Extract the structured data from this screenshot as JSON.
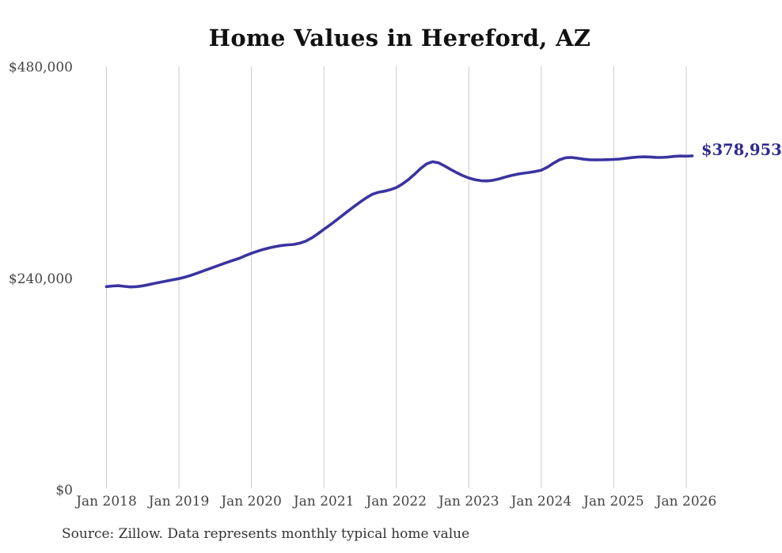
{
  "page": {
    "background_color": "#ffffff"
  },
  "chart_data": {
    "type": "line",
    "title": "Home Values in Hereford, AZ",
    "xlabel": "",
    "ylabel": "",
    "x_tick_labels": [
      "Jan 2018",
      "Jan 2019",
      "Jan 2020",
      "Jan 2021",
      "Jan 2022",
      "Jan 2023",
      "Jan 2024",
      "Jan 2025",
      "Jan 2026"
    ],
    "y_ticks": [
      {
        "label": "$480,000",
        "value": 480000
      },
      {
        "label": "$240,000",
        "value": 240000
      },
      {
        "label": "$0",
        "value": 0
      }
    ],
    "ylim": [
      0,
      480000
    ],
    "grid": "vertical-only",
    "legend": "none",
    "colors": {
      "line": "#3A34A0",
      "end_label": "#2E2A8E",
      "gridline": "#c9c9c9",
      "tick_text": "#444444",
      "title_text": "#111111"
    },
    "end_label": {
      "text": "$378,953",
      "value": 378953
    },
    "series": [
      {
        "name": "Monthly typical home value",
        "start_month": "2018-01",
        "frequency": "monthly",
        "values": [
          230500,
          231200,
          231600,
          230800,
          230200,
          230500,
          231400,
          232800,
          234300,
          235600,
          237000,
          238300,
          239600,
          241300,
          243400,
          245800,
          248200,
          250700,
          253200,
          255700,
          258100,
          260400,
          262700,
          265600,
          268300,
          270700,
          272800,
          274600,
          276100,
          277200,
          277900,
          278400,
          279800,
          282200,
          285800,
          290500,
          295600,
          300400,
          305600,
          311000,
          316300,
          321500,
          326500,
          331200,
          335200,
          337600,
          338800,
          340500,
          343000,
          347000,
          352000,
          358000,
          364500,
          369800,
          372300,
          371000,
          367500,
          363500,
          359800,
          356500,
          353800,
          351900,
          350800,
          350500,
          351200,
          352800,
          354800,
          356600,
          358100,
          359200,
          360100,
          361200,
          362700,
          366000,
          370500,
          374500,
          376800,
          377200,
          376300,
          375200,
          374600,
          374400,
          374500,
          374700,
          374900,
          375400,
          376200,
          377000,
          377600,
          377900,
          377700,
          377300,
          377200,
          377600,
          378300,
          378800,
          378600,
          378953
        ]
      }
    ],
    "source_note": "Source: Zillow. Data represents monthly typical home value"
  }
}
